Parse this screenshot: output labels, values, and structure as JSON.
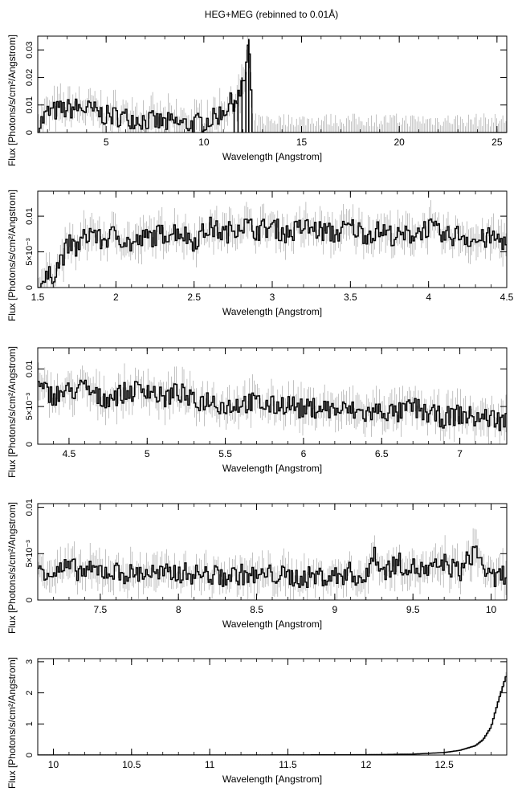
{
  "figure_title": "HEG+MEG (rebinned to 0.01Å)",
  "chart_data": [
    {
      "type": "line",
      "subtype": "step-with-errorbars",
      "xlabel": "Wavelength [Angstrom]",
      "ylabel": "Flux [Photons/s/cm²/Angstrom]",
      "xlim": [
        1.5,
        25.5
      ],
      "ylim": [
        0,
        0.035
      ],
      "xticks": [
        5,
        10,
        15,
        20,
        25
      ],
      "xtick_labels": [
        "5",
        "10",
        "15",
        "20",
        "25"
      ],
      "yticks": [
        0,
        0.01,
        0.02,
        0.03
      ],
      "ytick_labels": [
        "0",
        "0.01",
        "0.02",
        "0.03"
      ],
      "series": [
        {
          "x": [
            1.5,
            2,
            2.5,
            3,
            3.5,
            4,
            4.5,
            5,
            5.5,
            6,
            6.5,
            7,
            7.5,
            8,
            8.5,
            9,
            9.5,
            10,
            10.5,
            11,
            11.3,
            11.6,
            11.9,
            12.1,
            12.3,
            12.5,
            13,
            15,
            20,
            25.5
          ],
          "y": [
            0.002,
            0.007,
            0.008,
            0.0085,
            0.009,
            0.0085,
            0.0075,
            0.006,
            0.006,
            0.0055,
            0.005,
            0.0045,
            0.004,
            0.0035,
            0.0035,
            0.003,
            0.003,
            0.004,
            0.005,
            0.008,
            0.01,
            0.012,
            0.014,
            0.02,
            0.034,
            0.0002,
            0.0001,
            0.0,
            0.0,
            0.0
          ]
        }
      ]
    },
    {
      "type": "line",
      "subtype": "step-with-errorbars",
      "xlabel": "Wavelength [Angstrom]",
      "ylabel": "Flux [Photons/s/cm²/Angstrom]",
      "xlim": [
        1.5,
        4.5
      ],
      "ylim": [
        0,
        0.0135
      ],
      "xticks": [
        1.5,
        2,
        2.5,
        3,
        3.5,
        4,
        4.5
      ],
      "xtick_labels": [
        "1.5",
        "2",
        "2.5",
        "3",
        "3.5",
        "4",
        "4.5"
      ],
      "yticks": [
        0,
        0.005,
        0.01
      ],
      "ytick_labels": [
        "0",
        "5×10⁻³",
        "0.01"
      ],
      "series": [
        {
          "x": [
            1.5,
            1.55,
            1.6,
            1.65,
            1.7,
            1.75,
            1.8,
            1.85,
            1.9,
            2.0,
            2.1,
            2.2,
            2.3,
            2.4,
            2.5,
            2.6,
            2.7,
            2.8,
            2.9,
            3.0,
            3.1,
            3.2,
            3.3,
            3.4,
            3.5,
            3.6,
            3.7,
            3.8,
            3.9,
            4.0,
            4.1,
            4.2,
            4.3,
            4.4,
            4.5
          ],
          "y": [
            0.0005,
            0.001,
            0.002,
            0.004,
            0.006,
            0.0055,
            0.007,
            0.008,
            0.0065,
            0.0075,
            0.006,
            0.007,
            0.0075,
            0.008,
            0.0065,
            0.0085,
            0.0075,
            0.009,
            0.008,
            0.0085,
            0.0075,
            0.0085,
            0.008,
            0.0075,
            0.0085,
            0.0075,
            0.008,
            0.007,
            0.0075,
            0.0085,
            0.007,
            0.0075,
            0.0065,
            0.007,
            0.0065
          ]
        }
      ]
    },
    {
      "type": "line",
      "subtype": "step-with-errorbars",
      "xlabel": "Wavelength [Angstrom]",
      "ylabel": "Flux [Photons/s/cm²/Angstrom]",
      "xlim": [
        4.3,
        7.3
      ],
      "ylim": [
        0,
        0.0128
      ],
      "xticks": [
        4.5,
        5,
        5.5,
        6,
        6.5,
        7
      ],
      "xtick_labels": [
        "4.5",
        "5",
        "5.5",
        "6",
        "6.5",
        "7"
      ],
      "yticks": [
        0,
        0.005,
        0.01
      ],
      "ytick_labels": [
        "0",
        "5×10⁻³",
        "0.01"
      ],
      "series": [
        {
          "x": [
            4.3,
            4.4,
            4.5,
            4.6,
            4.7,
            4.8,
            4.9,
            5.0,
            5.1,
            5.2,
            5.3,
            5.4,
            5.5,
            5.6,
            5.7,
            5.8,
            5.9,
            6.0,
            6.1,
            6.2,
            6.3,
            6.4,
            6.5,
            6.6,
            6.7,
            6.8,
            6.9,
            7.0,
            7.1,
            7.2,
            7.3
          ],
          "y": [
            0.0075,
            0.0065,
            0.007,
            0.0075,
            0.006,
            0.0065,
            0.007,
            0.0075,
            0.006,
            0.007,
            0.0055,
            0.006,
            0.005,
            0.0055,
            0.0055,
            0.005,
            0.0055,
            0.0045,
            0.005,
            0.0045,
            0.0045,
            0.004,
            0.0045,
            0.004,
            0.005,
            0.004,
            0.0035,
            0.004,
            0.0035,
            0.0035,
            0.003
          ]
        }
      ]
    },
    {
      "type": "line",
      "subtype": "step-with-errorbars",
      "xlabel": "Wavelength [Angstrom]",
      "ylabel": "Flux [Photons/s/cm²/Angstrom]",
      "xlim": [
        7.1,
        10.1
      ],
      "ylim": [
        0,
        0.0104
      ],
      "xticks": [
        7.5,
        8,
        8.5,
        9,
        9.5,
        10
      ],
      "xtick_labels": [
        "7.5",
        "8",
        "8.5",
        "9",
        "9.5",
        "10"
      ],
      "yticks": [
        0,
        0.005,
        0.01
      ],
      "ytick_labels": [
        "0",
        "5×10⁻³",
        "0.01"
      ],
      "series": [
        {
          "x": [
            7.1,
            7.2,
            7.3,
            7.4,
            7.5,
            7.6,
            7.7,
            7.8,
            7.9,
            8.0,
            8.1,
            8.2,
            8.3,
            8.4,
            8.5,
            8.6,
            8.7,
            8.8,
            8.9,
            9.0,
            9.1,
            9.2,
            9.25,
            9.3,
            9.4,
            9.5,
            9.6,
            9.7,
            9.8,
            9.9,
            10.0,
            10.1
          ],
          "y": [
            0.0035,
            0.003,
            0.0035,
            0.003,
            0.0032,
            0.003,
            0.0028,
            0.003,
            0.0027,
            0.003,
            0.0028,
            0.0027,
            0.0025,
            0.0028,
            0.0025,
            0.0028,
            0.0025,
            0.0024,
            0.0026,
            0.0025,
            0.003,
            0.002,
            0.0055,
            0.003,
            0.004,
            0.0035,
            0.003,
            0.004,
            0.003,
            0.0055,
            0.002,
            0.003
          ]
        }
      ]
    },
    {
      "type": "line",
      "subtype": "step-with-errorbars",
      "xlabel": "Wavelength [Angstrom]",
      "ylabel": "Flux [Photons/s/cm²/Angstrom]",
      "xlim": [
        9.9,
        12.9
      ],
      "ylim": [
        0,
        3.1
      ],
      "xticks": [
        10,
        10.5,
        11,
        11.5,
        12,
        12.5
      ],
      "xtick_labels": [
        "10",
        "10.5",
        "11",
        "11.5",
        "12",
        "12.5"
      ],
      "yticks": [
        0,
        1,
        2,
        3
      ],
      "ytick_labels": [
        "0",
        "1",
        "2",
        "3"
      ],
      "series": [
        {
          "x": [
            9.9,
            10.5,
            11.0,
            11.5,
            12.0,
            12.3,
            12.5,
            12.6,
            12.7,
            12.75,
            12.8,
            12.85,
            12.9
          ],
          "y": [
            0.0,
            0.0,
            0.0,
            0.005,
            0.01,
            0.03,
            0.08,
            0.15,
            0.3,
            0.5,
            0.9,
            1.8,
            2.6
          ]
        }
      ]
    }
  ]
}
